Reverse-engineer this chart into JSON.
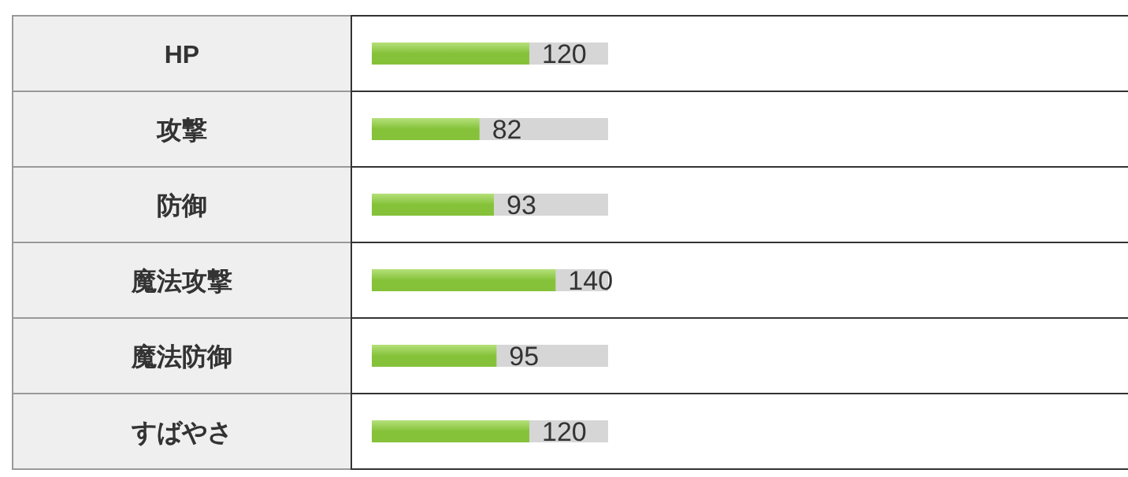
{
  "chart_data": {
    "type": "bar",
    "orientation": "horizontal",
    "categories": [
      "HP",
      "攻撃",
      "防御",
      "魔法攻撃",
      "魔法防御",
      "すばやさ"
    ],
    "values": [
      120,
      82,
      93,
      140,
      95,
      120
    ],
    "color": "#85c23a",
    "data_labels": true,
    "xlim": [
      0,
      180
    ]
  }
}
